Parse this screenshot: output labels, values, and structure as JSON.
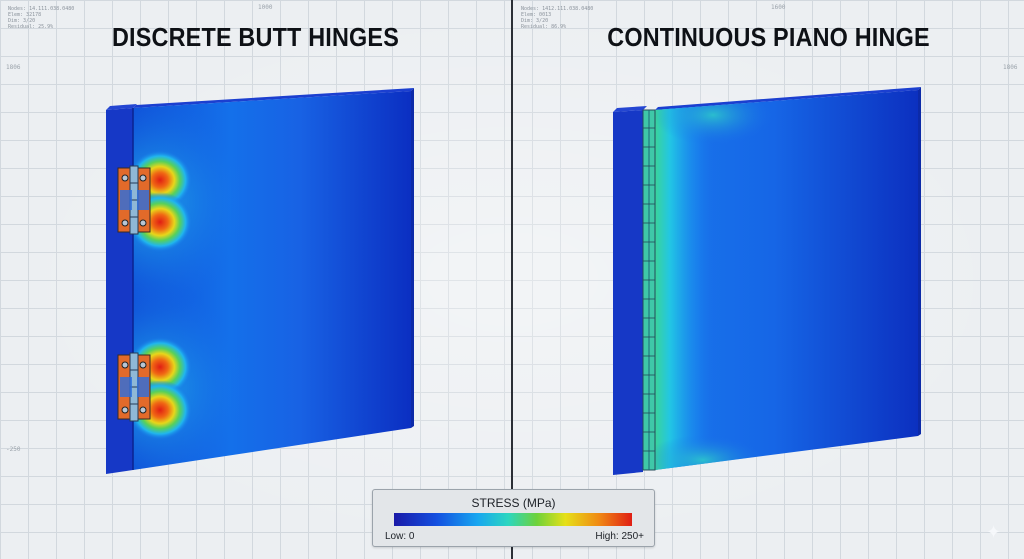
{
  "left_view": {
    "title": "DISCRETE BUTT HINGES",
    "info_lines": [
      "Nodes: 14.111.038.0480",
      "Elem: 32178",
      "Dim: 3/20",
      "Residual: 25.9%"
    ],
    "ticks": [
      "1806",
      "1000",
      "-250"
    ]
  },
  "right_view": {
    "title": "CONTINUOUS PIANO HINGE",
    "info_lines": [
      "Nodes: 1412.111.038.0480",
      "Elem: 0013",
      "Dim: 3/20",
      "Residual: 86.9%"
    ],
    "ticks": [
      "1806",
      "1600"
    ]
  },
  "legend": {
    "title": "STRESS (MPa)",
    "low_label": "Low: 0",
    "high_label": "High: 250+",
    "colors": [
      "#1a1aa8",
      "#1450e0",
      "#18a6f0",
      "#2cd6c0",
      "#6ed23a",
      "#e6e018",
      "#f08a14",
      "#e01e14"
    ]
  },
  "corner_icon": "sparkle-icon"
}
